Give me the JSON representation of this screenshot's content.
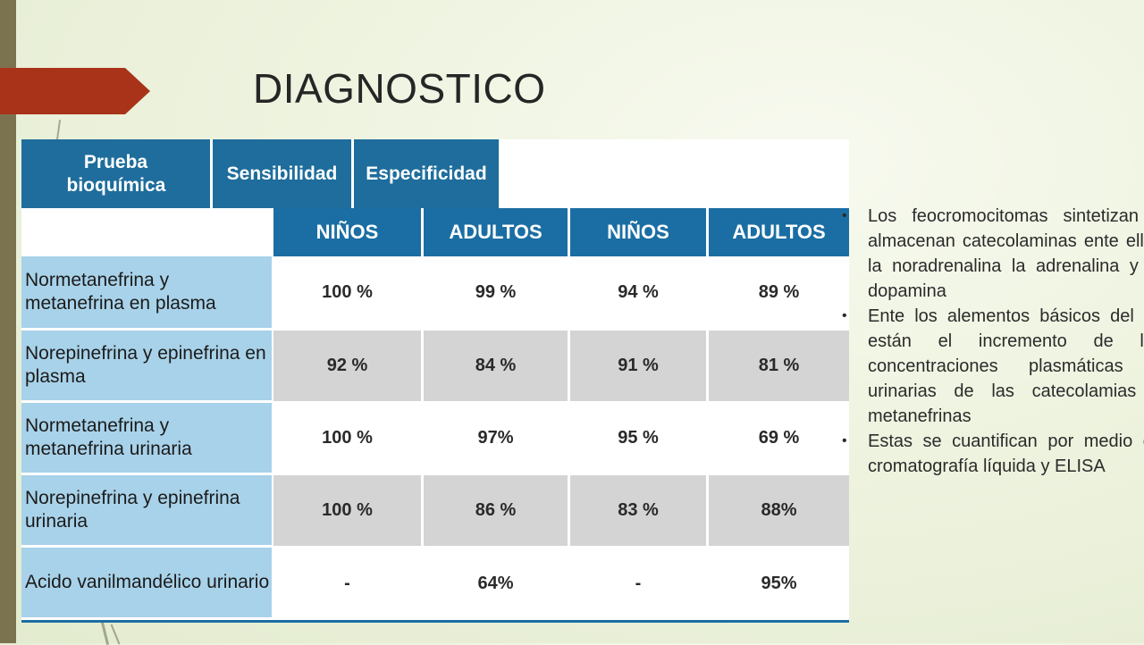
{
  "slide": {
    "title": "DIAGNOSTICO"
  },
  "table": {
    "header": {
      "col_test": "Prueba bioquímica",
      "col_sensitivity": "Sensibilidad",
      "col_specificity": "Especificidad",
      "sub": [
        "NIÑOS",
        "ADULTOS",
        "NIÑOS",
        "ADULTOS"
      ]
    },
    "rows": [
      {
        "label": "Normetanefrina y metanefrina en plasma",
        "values": [
          "100 %",
          "99 %",
          "94 %",
          "89 %"
        ]
      },
      {
        "label": "Norepinefrina y epinefrina en plasma",
        "values": [
          "92 %",
          "84 %",
          "91 %",
          "81 %"
        ]
      },
      {
        "label": "Normetanefrina y metanefrina urinaria",
        "values": [
          "100 %",
          "97%",
          "95 %",
          "69 %"
        ]
      },
      {
        "label": "Norepinefrina y epinefrina urinaria",
        "values": [
          "100 %",
          "86 %",
          "83 %",
          "88%"
        ]
      },
      {
        "label": "Acido vanilmandélico urinario",
        "values": [
          "-",
          "64%",
          "-",
          "95%"
        ]
      }
    ]
  },
  "bullets": [
    "Los feocromocitomas sintetizan y almacenan catecolaminas ente ellas la noradrenalina la adrenalina y la dopamina",
    "Ente los alementos básicos del dx están el incremento de las concentraciones plasmáticas y urinarias de las catecolamias y metanefrinas",
    "Estas se cuantifican por medio de cromatografía líquida y ELISA"
  ],
  "colors": {
    "header_blue": "#1b6ea3",
    "row_label_blue": "#a8d2e9",
    "grey_row": "#d4d4d4",
    "accent_arrow": "#a83318"
  }
}
